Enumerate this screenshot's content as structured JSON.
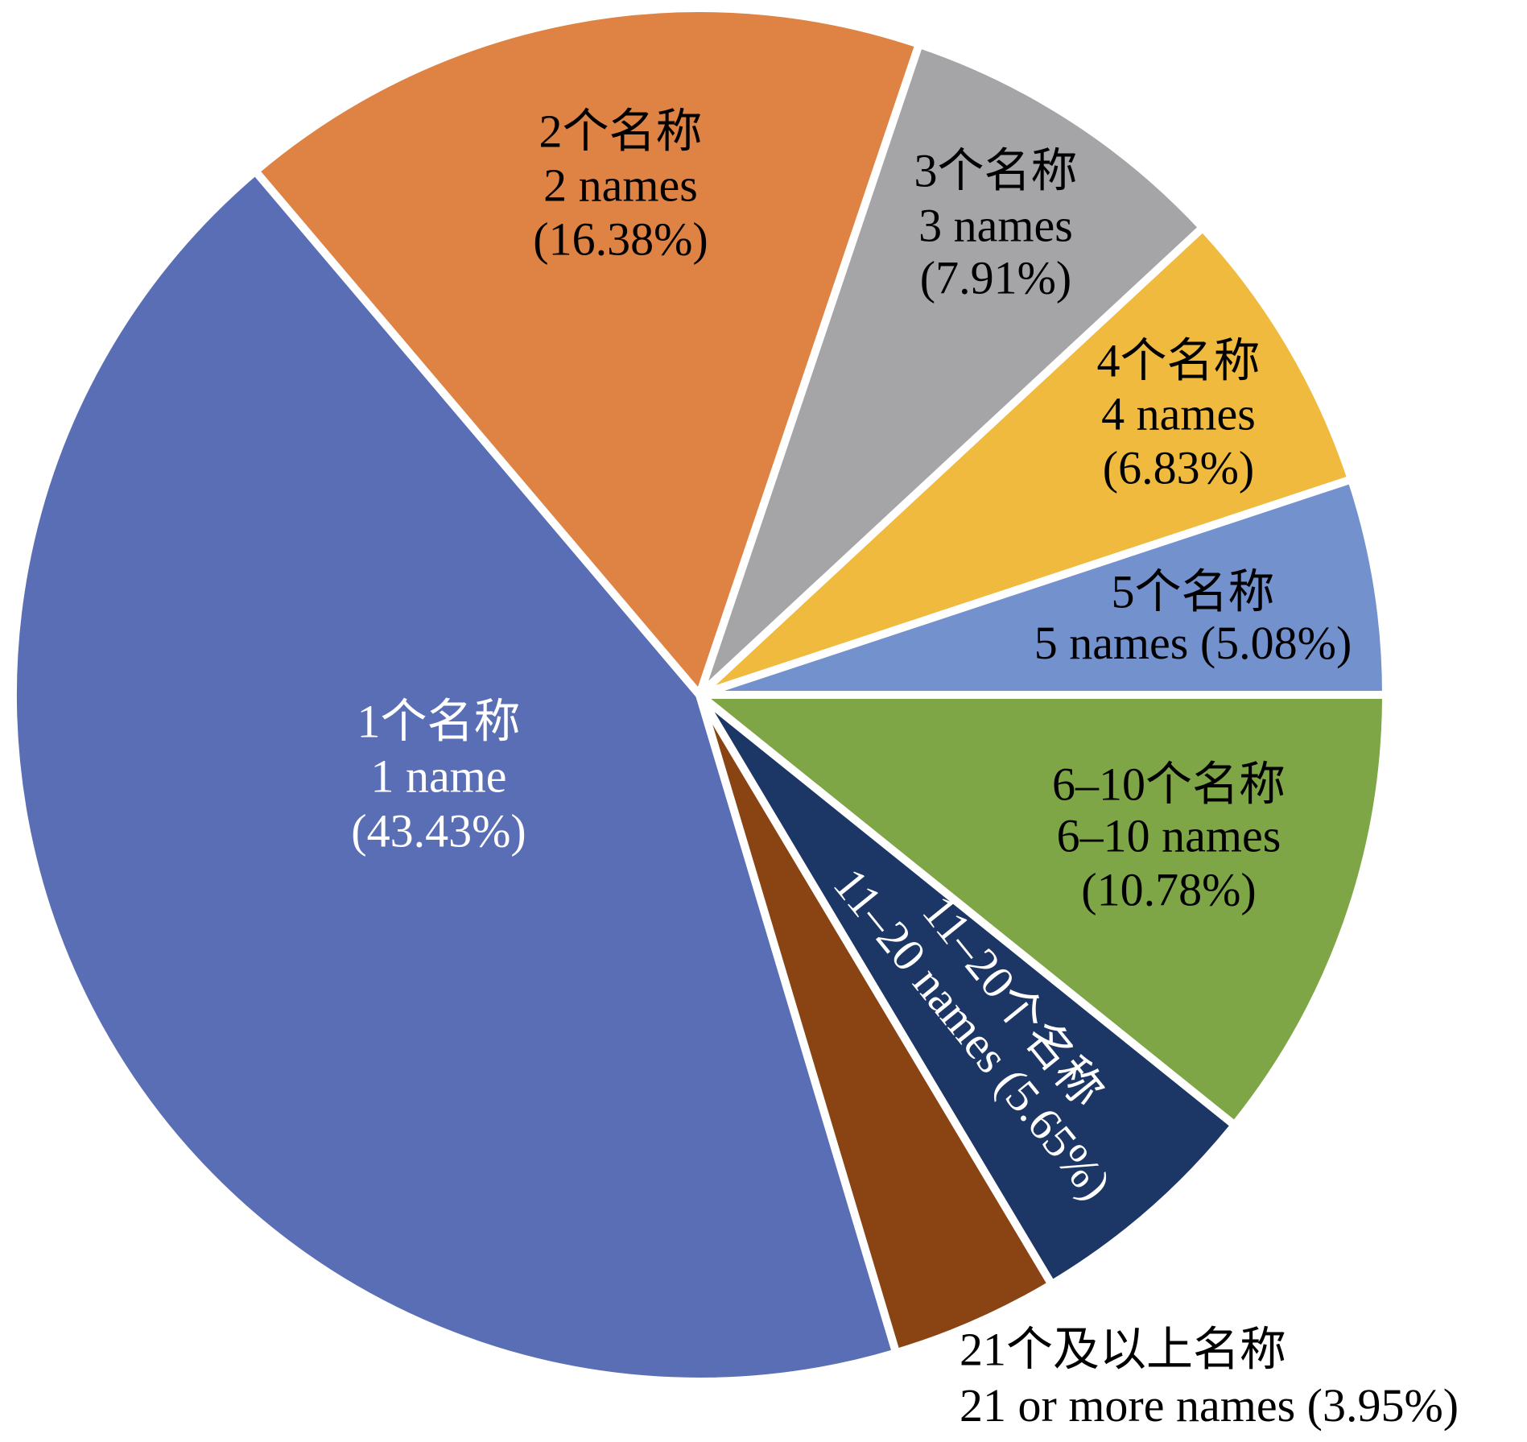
{
  "chart_data": {
    "type": "pie",
    "categories": [
      "1个名称",
      "2个名称",
      "3个名称",
      "4个名称",
      "5个名称",
      "6–10个名称",
      "11–20个名称",
      "21个及以上名称"
    ],
    "names_en": [
      "1 name",
      "2 names",
      "3 names",
      "4 names",
      "5 names",
      "6–10 names",
      "11–20 names",
      "21 or more names"
    ],
    "values": [
      43.43,
      16.38,
      7.91,
      6.83,
      5.08,
      10.78,
      5.65,
      3.95
    ],
    "value_labels": [
      "(43.43%)",
      "(16.38%)",
      "(7.91%)",
      "(6.83%)",
      "(5.08%)",
      "(10.78%)",
      "(5.65%)",
      "(3.95%)"
    ],
    "colors": [
      "#5a6eb6",
      "#de8344",
      "#a5a5a8",
      "#efba3e",
      "#7391cc",
      "#7ea646",
      "#1c3666",
      "#8a4414"
    ],
    "label_colors": [
      "#ffffff",
      "#000000",
      "#000000",
      "#000000",
      "#000000",
      "#000000",
      "#ffffff",
      "#000000"
    ]
  }
}
